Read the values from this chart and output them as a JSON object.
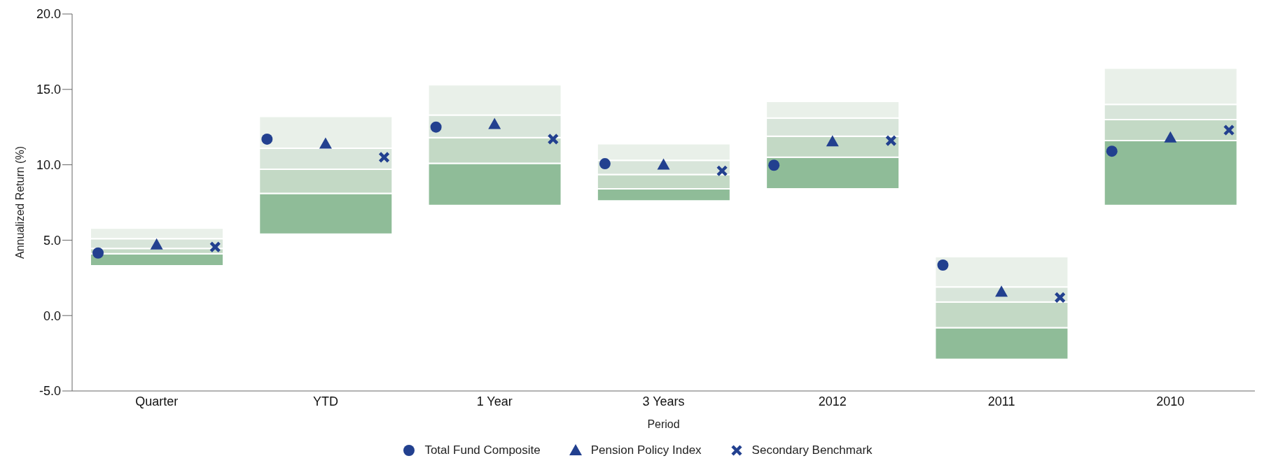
{
  "chart_data": {
    "type": "bar",
    "xlabel": "Period",
    "ylabel": "Annualized Return (%)",
    "categories": [
      "Quarter",
      "YTD",
      "1 Year",
      "3 Years",
      "2012",
      "2011",
      "2010"
    ],
    "series": [
      {
        "color": "#8fbc98",
        "base": [
          3.3,
          5.4,
          7.3,
          7.6,
          8.4,
          -2.9,
          7.3
        ],
        "values": [
          0.8,
          2.7,
          2.8,
          0.8,
          2.1,
          2.1,
          4.3
        ]
      },
      {
        "color": "#c3d9c5",
        "base": [
          4.1,
          8.1,
          10.1,
          8.4,
          10.5,
          -0.8,
          11.6
        ],
        "values": [
          0.35,
          1.6,
          1.7,
          0.95,
          1.4,
          1.7,
          1.4
        ]
      },
      {
        "color": "#d8e5da",
        "base": [
          4.45,
          9.7,
          11.8,
          9.35,
          11.9,
          0.9,
          13.0
        ],
        "values": [
          0.65,
          1.4,
          1.5,
          0.95,
          1.2,
          1.0,
          1.0
        ]
      },
      {
        "color": "#e9f0e9",
        "base": [
          5.1,
          11.1,
          13.3,
          10.3,
          13.1,
          1.9,
          14.0
        ],
        "values": [
          0.7,
          2.1,
          2.0,
          1.1,
          1.1,
          2.0,
          2.4
        ]
      },
      {
        "type": "scatter",
        "name": "Total Fund Composite",
        "color": "#22408f",
        "marker": "circle",
        "values": [
          4.15,
          11.7,
          12.5,
          10.07,
          9.97,
          3.35,
          10.9
        ]
      },
      {
        "type": "scatter",
        "name": "Pension Policy Index",
        "color": "#22408f",
        "marker": "triangle",
        "values": [
          4.7,
          11.4,
          12.7,
          10.0,
          11.55,
          1.57,
          11.8
        ]
      },
      {
        "type": "scatter",
        "name": "Secondary Benchmark",
        "color": "#22408f",
        "marker": "cross",
        "values": [
          4.55,
          10.5,
          11.7,
          9.6,
          11.6,
          1.2,
          12.3
        ]
      }
    ],
    "ylim": [
      -5,
      20
    ],
    "yticks": [
      {
        "value": -5,
        "label": "-5.0"
      },
      {
        "value": 0,
        "label": "0.0"
      },
      {
        "value": 5,
        "label": "5.0"
      },
      {
        "value": 10,
        "label": "10.0"
      },
      {
        "value": 15,
        "label": "15.0"
      },
      {
        "value": 20,
        "label": "20.0"
      }
    ],
    "legend": "bottom"
  }
}
